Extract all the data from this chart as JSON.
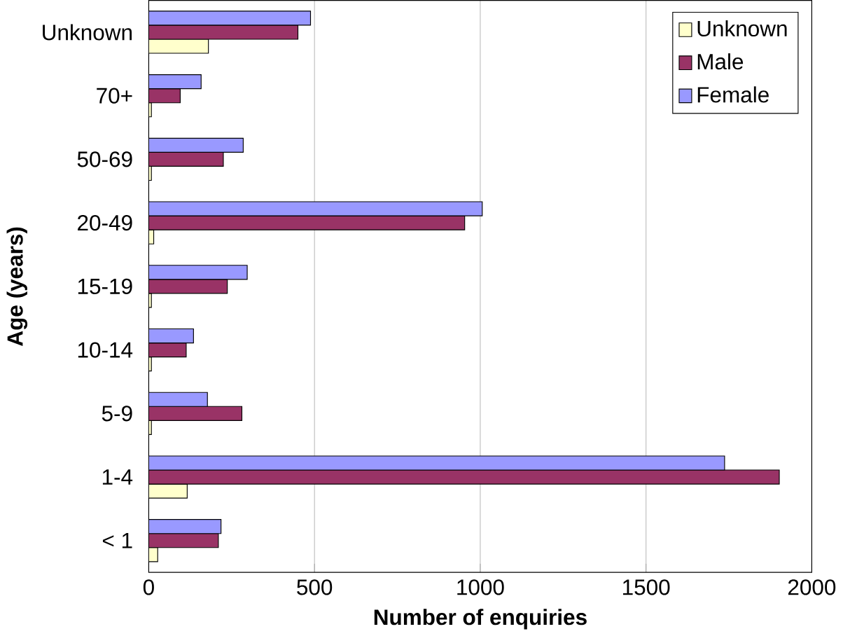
{
  "chart_data": {
    "type": "bar",
    "orientation": "horizontal",
    "xlabel": "Number of enquiries",
    "ylabel": "Age (years)",
    "categories": [
      "Unknown",
      "70+",
      "50-69",
      "20-49",
      "15-19",
      "10-14",
      "5-9",
      "1-4",
      "< 1"
    ],
    "series": [
      {
        "name": "Unknown",
        "color": "#ffffcc",
        "values": [
          180,
          8,
          8,
          15,
          8,
          8,
          8,
          116,
          27
        ]
      },
      {
        "name": "Male",
        "color": "#993366",
        "values": [
          450,
          95,
          225,
          953,
          237,
          113,
          281,
          1902,
          210
        ]
      },
      {
        "name": "Female",
        "color": "#9999ff",
        "values": [
          488,
          158,
          285,
          1006,
          297,
          135,
          177,
          1737,
          218
        ]
      }
    ],
    "xlim": [
      0,
      2000
    ],
    "xticks": [
      0,
      500,
      1000,
      1500,
      2000
    ],
    "grid": "x",
    "legend": "top right"
  }
}
